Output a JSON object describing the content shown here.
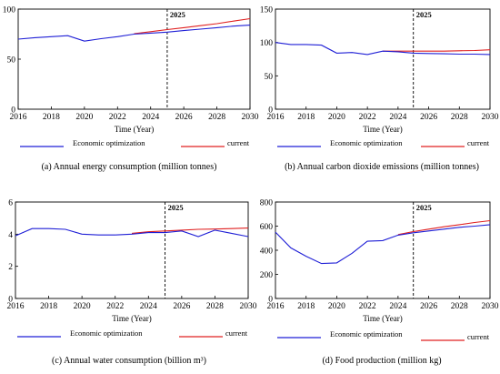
{
  "colors": {
    "optimization": "#1f1fd6",
    "current": "#e02020",
    "axis": "#000000",
    "marker": "#000000"
  },
  "chart_data": [
    {
      "type": "line",
      "caption": "(a) Annual energy consumption (million tonnes)",
      "xlabel": "Time (Year)",
      "ylabel": "",
      "xlim": [
        2016,
        2030
      ],
      "ylim": [
        0,
        100
      ],
      "xticks": [
        2016,
        2018,
        2020,
        2022,
        2024,
        2026,
        2028,
        2030
      ],
      "yticks": [
        0,
        50,
        100
      ],
      "marker_label": "2025",
      "marker_x": 2025,
      "series": [
        {
          "name": "Economic optimization",
          "color": "#1f1fd6",
          "x": [
            2016,
            2017,
            2018,
            2019,
            2020,
            2021,
            2022,
            2023,
            2024,
            2025,
            2026,
            2027,
            2028,
            2029,
            2030
          ],
          "y": [
            70,
            71.5,
            72.5,
            73.5,
            68,
            70.5,
            72.5,
            75,
            76,
            77,
            78.5,
            80,
            81.5,
            83,
            84
          ]
        },
        {
          "name": "current",
          "color": "#e02020",
          "x": [
            2023,
            2024,
            2025,
            2026,
            2027,
            2028,
            2029,
            2030
          ],
          "y": [
            75.5,
            77.5,
            79.5,
            81.5,
            83.5,
            85.5,
            88,
            90.5
          ]
        }
      ]
    },
    {
      "type": "line",
      "caption": "(b) Annual carbon dioxide emissions (million tonnes)",
      "xlabel": "Time (Year)",
      "ylabel": "",
      "xlim": [
        2016,
        2030
      ],
      "ylim": [
        0,
        150
      ],
      "xticks": [
        2016,
        2018,
        2020,
        2022,
        2024,
        2026,
        2028,
        2030
      ],
      "yticks": [
        0,
        50,
        100,
        150
      ],
      "marker_label": "2025",
      "marker_x": 2025,
      "series": [
        {
          "name": "Economic optimization",
          "color": "#1f1fd6",
          "x": [
            2016,
            2017,
            2018,
            2019,
            2020,
            2021,
            2022,
            2023,
            2024,
            2025,
            2026,
            2027,
            2028,
            2029,
            2030
          ],
          "y": [
            100,
            97,
            97,
            96,
            84,
            85,
            82,
            87,
            86,
            84,
            83.5,
            83,
            82.5,
            82.5,
            82
          ]
        },
        {
          "name": "current",
          "color": "#e02020",
          "x": [
            2023,
            2024,
            2025,
            2026,
            2027,
            2028,
            2029,
            2030
          ],
          "y": [
            87,
            87,
            87,
            87,
            87,
            87.5,
            88,
            89
          ]
        }
      ]
    },
    {
      "type": "line",
      "caption": "(c) Annual water consumption (billion m³)",
      "xlabel": "Time (Year)",
      "ylabel": "",
      "xlim": [
        2016,
        2030
      ],
      "ylim": [
        0,
        6
      ],
      "xticks": [
        2016,
        2018,
        2020,
        2022,
        2024,
        2026,
        2028,
        2030
      ],
      "yticks": [
        0,
        2,
        4,
        6
      ],
      "marker_label": "2025",
      "marker_x": 2025,
      "series": [
        {
          "name": "Economic optimization",
          "color": "#1f1fd6",
          "x": [
            2016,
            2017,
            2018,
            2019,
            2020,
            2021,
            2022,
            2023,
            2024,
            2025,
            2026,
            2027,
            2028,
            2029,
            2030
          ],
          "y": [
            3.9,
            4.35,
            4.35,
            4.3,
            4.0,
            3.95,
            3.95,
            4.0,
            4.1,
            4.1,
            4.2,
            3.85,
            4.25,
            4.05,
            3.85
          ]
        },
        {
          "name": "current",
          "color": "#e02020",
          "x": [
            2023,
            2024,
            2025,
            2026,
            2027,
            2028,
            2029,
            2030
          ],
          "y": [
            4.05,
            4.15,
            4.2,
            4.25,
            4.3,
            4.32,
            4.35,
            4.38
          ]
        }
      ]
    },
    {
      "type": "line",
      "caption": "(d) Food production (million kg)",
      "xlabel": "Time (Year)",
      "ylabel": "",
      "xlim": [
        2016,
        2030
      ],
      "ylim": [
        0,
        800
      ],
      "xticks": [
        2016,
        2018,
        2020,
        2022,
        2024,
        2026,
        2028,
        2030
      ],
      "yticks": [
        0,
        200,
        400,
        600,
        800
      ],
      "marker_label": "2025",
      "marker_x": 2025,
      "series": [
        {
          "name": "Economic optimization",
          "color": "#1f1fd6",
          "x": [
            2016,
            2017,
            2018,
            2019,
            2020,
            2021,
            2022,
            2023,
            2024,
            2025,
            2026,
            2027,
            2028,
            2029,
            2030
          ],
          "y": [
            550,
            420,
            350,
            290,
            295,
            375,
            475,
            480,
            525,
            545,
            560,
            575,
            590,
            600,
            612
          ]
        },
        {
          "name": "current",
          "color": "#e02020",
          "x": [
            2024,
            2025,
            2026,
            2027,
            2028,
            2029,
            2030
          ],
          "y": [
            530,
            555,
            575,
            595,
            612,
            630,
            645
          ]
        }
      ]
    }
  ]
}
